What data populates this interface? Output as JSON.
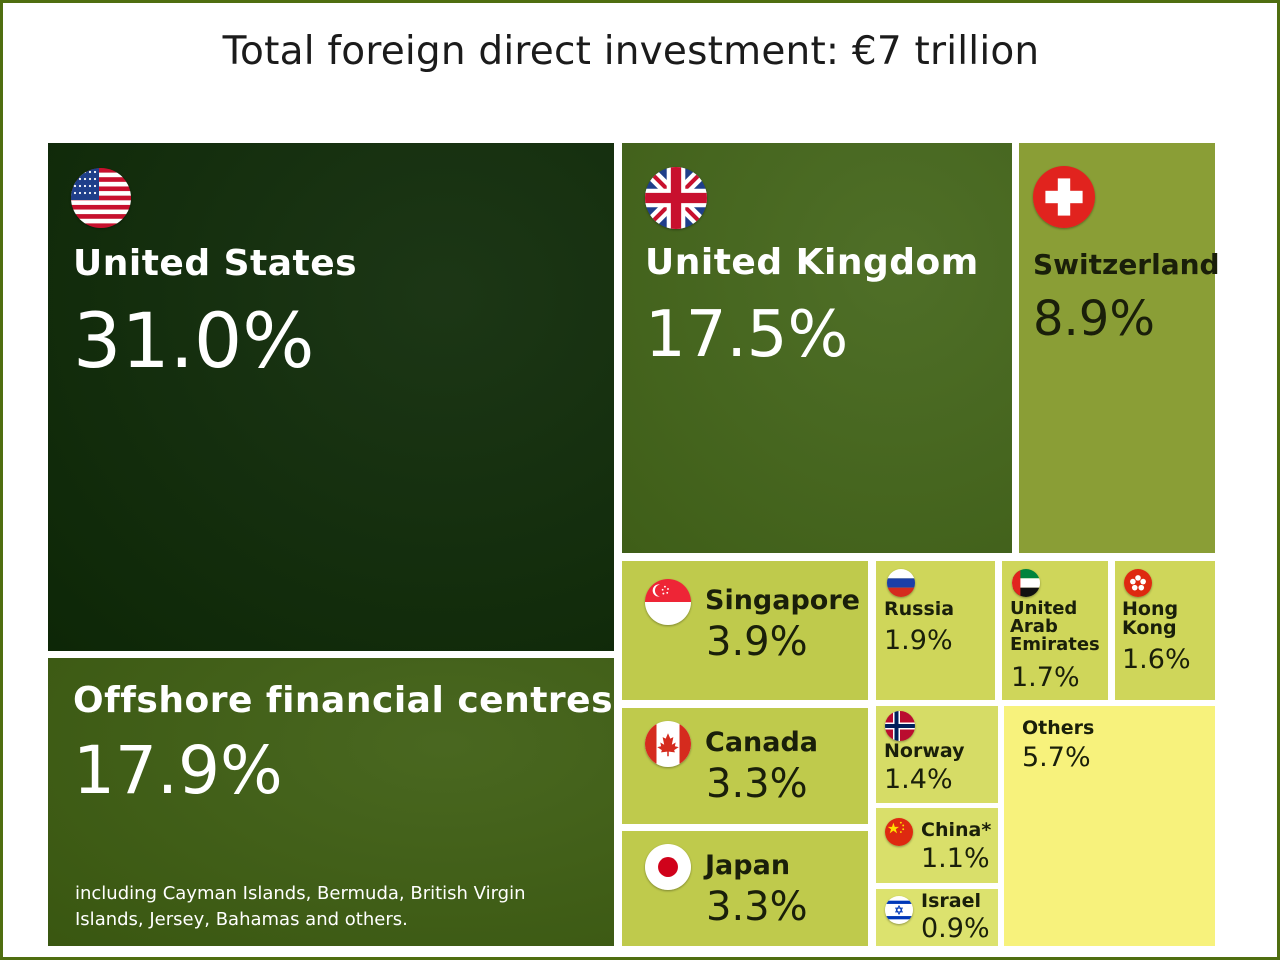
{
  "chart_data": {
    "type": "treemap",
    "title": "Total foreign direct investment: €7 trillion",
    "unit": "%",
    "items": [
      {
        "id": "us",
        "name": "United States",
        "value": 31.0,
        "value_label": "31.0%",
        "color": "#0e2a07",
        "icon": "usa-flag-icon"
      },
      {
        "id": "ofc",
        "name": "Offshore financial centres",
        "value": 17.9,
        "value_label": "17.9%",
        "note": "including Cayman Islands, Bermuda, British Virgin Islands, Jersey, Bahamas and others.",
        "color": "#3e5e12"
      },
      {
        "id": "uk",
        "name": "United Kingdom",
        "value": 17.5,
        "value_label": "17.5%",
        "color": "#44661a",
        "icon": "uk-flag-icon"
      },
      {
        "id": "ch",
        "name": "Switzerland",
        "value": 8.9,
        "value_label": "8.9%",
        "color": "#8a9e36",
        "icon": "switzerland-flag-icon"
      },
      {
        "id": "sg",
        "name": "Singapore",
        "value": 3.9,
        "value_label": "3.9%",
        "color": "#bfca4c",
        "icon": "singapore-flag-icon"
      },
      {
        "id": "ca",
        "name": "Canada",
        "value": 3.3,
        "value_label": "3.3%",
        "color": "#bfca4c",
        "icon": "canada-flag-icon"
      },
      {
        "id": "jp",
        "name": "Japan",
        "value": 3.3,
        "value_label": "3.3%",
        "color": "#bfca4c",
        "icon": "japan-flag-icon"
      },
      {
        "id": "ru",
        "name": "Russia",
        "value": 1.9,
        "value_label": "1.9%",
        "color": "#cfd65a",
        "icon": "russia-flag-icon"
      },
      {
        "id": "ae",
        "name": "United Arab Emirates",
        "value": 1.7,
        "value_label": "1.7%",
        "color": "#cfd65a",
        "icon": "uae-flag-icon"
      },
      {
        "id": "hk",
        "name": "Hong Kong",
        "value": 1.6,
        "value_label": "1.6%",
        "color": "#cfd65a",
        "icon": "hong-kong-flag-icon"
      },
      {
        "id": "no",
        "name": "Norway",
        "value": 1.4,
        "value_label": "1.4%",
        "color": "#d6dc66",
        "icon": "norway-flag-icon"
      },
      {
        "id": "cn",
        "name": "China*",
        "value": 1.1,
        "value_label": "1.1%",
        "color": "#d9df6a",
        "icon": "china-flag-icon"
      },
      {
        "id": "il",
        "name": "Israel",
        "value": 0.9,
        "value_label": "0.9%",
        "color": "#dce26e",
        "icon": "israel-flag-icon"
      },
      {
        "id": "others",
        "name": "Others",
        "value": 5.7,
        "value_label": "5.7%",
        "color": "#f7f27c"
      }
    ]
  }
}
